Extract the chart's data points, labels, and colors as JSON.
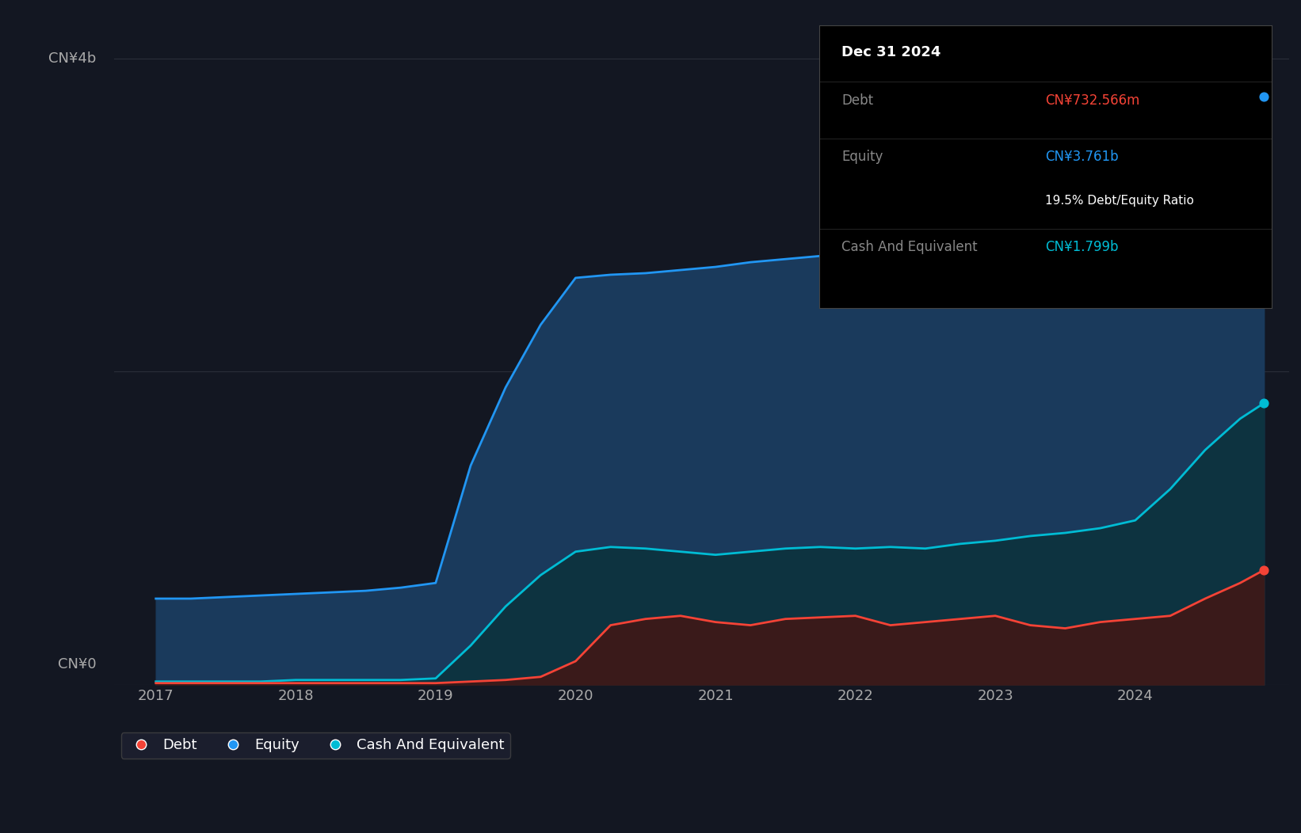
{
  "bg_color": "#131722",
  "plot_bg_color": "#131722",
  "grid_color": "#2a2e39",
  "ylabel_4b": "CN¥4b",
  "ylabel_0": "CN¥0",
  "equity_color": "#2196f3",
  "equity_fill": "#1a3a5c",
  "cash_color": "#00bcd4",
  "cash_fill": "#0d3340",
  "debt_color": "#f44336",
  "debt_fill": "#3a1a1a",
  "tooltip_bg": "#000000",
  "tooltip_border": "#333333",
  "tooltip_title": "Dec 31 2024",
  "tooltip_debt_label": "Debt",
  "tooltip_debt_value": "CN¥732.566m",
  "tooltip_equity_label": "Equity",
  "tooltip_equity_value": "CN¥3.761b",
  "tooltip_ratio": "19.5% Debt/Equity Ratio",
  "tooltip_cash_label": "Cash And Equivalent",
  "tooltip_cash_value": "CN¥1.799b",
  "legend_items": [
    "Debt",
    "Equity",
    "Cash And Equivalent"
  ],
  "x_ticks": [
    2017,
    2018,
    2019,
    2020,
    2021,
    2022,
    2023,
    2024
  ],
  "x_data": [
    2017.0,
    2017.25,
    2017.5,
    2017.75,
    2018.0,
    2018.25,
    2018.5,
    2018.75,
    2019.0,
    2019.25,
    2019.5,
    2019.75,
    2020.0,
    2020.25,
    2020.5,
    2020.75,
    2021.0,
    2021.25,
    2021.5,
    2021.75,
    2022.0,
    2022.25,
    2022.5,
    2022.75,
    2023.0,
    2023.25,
    2023.5,
    2023.75,
    2024.0,
    2024.25,
    2024.5,
    2024.75,
    2024.92
  ],
  "equity_data": [
    0.55,
    0.55,
    0.56,
    0.57,
    0.58,
    0.59,
    0.6,
    0.62,
    0.65,
    1.4,
    1.9,
    2.3,
    2.6,
    2.62,
    2.63,
    2.65,
    2.67,
    2.7,
    2.72,
    2.74,
    2.76,
    2.85,
    2.9,
    2.95,
    3.0,
    3.05,
    3.1,
    3.15,
    3.2,
    3.4,
    3.55,
    3.7,
    3.761
  ],
  "cash_data": [
    0.02,
    0.02,
    0.02,
    0.02,
    0.03,
    0.03,
    0.03,
    0.03,
    0.04,
    0.25,
    0.5,
    0.7,
    0.85,
    0.88,
    0.87,
    0.85,
    0.83,
    0.85,
    0.87,
    0.88,
    0.87,
    0.88,
    0.87,
    0.9,
    0.92,
    0.95,
    0.97,
    1.0,
    1.05,
    1.25,
    1.5,
    1.7,
    1.799
  ],
  "debt_data": [
    0.01,
    0.01,
    0.01,
    0.01,
    0.01,
    0.01,
    0.01,
    0.01,
    0.01,
    0.02,
    0.03,
    0.05,
    0.15,
    0.38,
    0.42,
    0.44,
    0.4,
    0.38,
    0.42,
    0.43,
    0.44,
    0.38,
    0.4,
    0.42,
    0.44,
    0.38,
    0.36,
    0.4,
    0.42,
    0.44,
    0.55,
    0.65,
    0.7326
  ],
  "ylim": [
    0,
    4.3
  ],
  "xlim": [
    2016.7,
    2025.1
  ]
}
